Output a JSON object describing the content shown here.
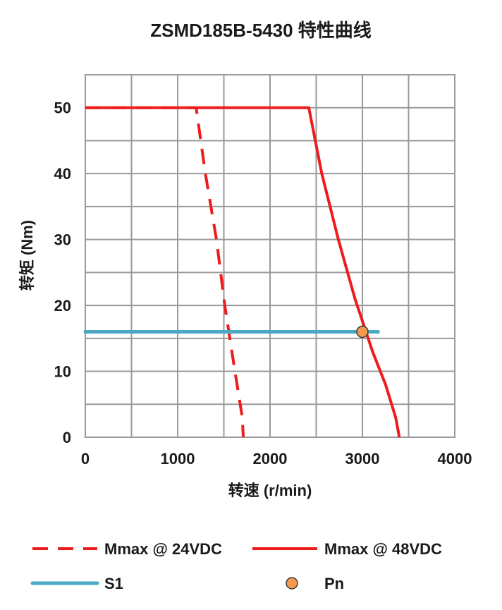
{
  "chart_data": {
    "type": "line",
    "title": "ZSMD185B-5430 特性曲线",
    "xlabel": "转速 (r/min)",
    "ylabel": "转矩 (Nm)",
    "xlim": [
      0,
      4000
    ],
    "ylim": [
      0,
      55
    ],
    "x_ticks": [
      0,
      1000,
      2000,
      3000,
      4000
    ],
    "y_ticks": [
      0,
      10,
      20,
      30,
      40,
      50
    ],
    "x_tick_labels": [
      "0",
      "1000",
      "2000",
      "3000",
      "4000"
    ],
    "y_tick_labels": [
      "0",
      "10",
      "20",
      "30",
      "40",
      "50"
    ],
    "grid": true,
    "legend_position": "bottom",
    "series": [
      {
        "name": "Mmax @ 24VDC",
        "color": "#ee1c1c",
        "style": "dashed",
        "points": [
          [
            0,
            50
          ],
          [
            1200,
            50
          ],
          [
            1300,
            40
          ],
          [
            1420,
            30
          ],
          [
            1510,
            20
          ],
          [
            1620,
            10
          ],
          [
            1700,
            3
          ],
          [
            1710,
            0
          ]
        ]
      },
      {
        "name": "Mmax @ 48VDC",
        "color": "#ee1c1c",
        "style": "solid",
        "points": [
          [
            0,
            50
          ],
          [
            2420,
            50
          ],
          [
            2560,
            40
          ],
          [
            2740,
            30
          ],
          [
            2920,
            21
          ],
          [
            3110,
            13
          ],
          [
            3250,
            8
          ],
          [
            3360,
            3
          ],
          [
            3400,
            0
          ]
        ]
      },
      {
        "name": "S1",
        "color": "#4aa8c4",
        "style": "solid",
        "points": [
          [
            0,
            16
          ],
          [
            3170,
            16
          ]
        ]
      },
      {
        "name": "Pn",
        "color": "#f39a4c",
        "style": "marker",
        "points": [
          [
            3000,
            16
          ]
        ]
      }
    ]
  }
}
